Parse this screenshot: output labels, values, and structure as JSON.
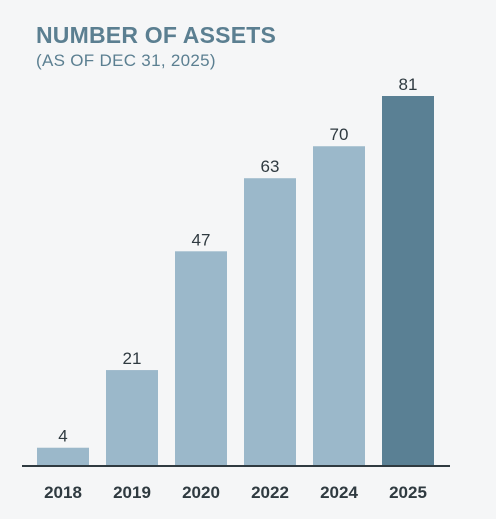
{
  "chart_data": {
    "type": "bar",
    "title": "NUMBER OF ASSETS",
    "subtitle": "(AS OF DEC 31, 2025)",
    "categories": [
      "2018",
      "2019",
      "2020",
      "2022",
      "2024",
      "2025"
    ],
    "values": [
      4,
      21,
      47,
      63,
      70,
      81
    ],
    "ylim": [
      0,
      81
    ],
    "grid": false,
    "bar_color": "#9bb8ca",
    "highlight_color": "#5a8094",
    "highlight_index": 5,
    "axis_color": "#2f3a40",
    "label_color": "#2f3a40"
  }
}
